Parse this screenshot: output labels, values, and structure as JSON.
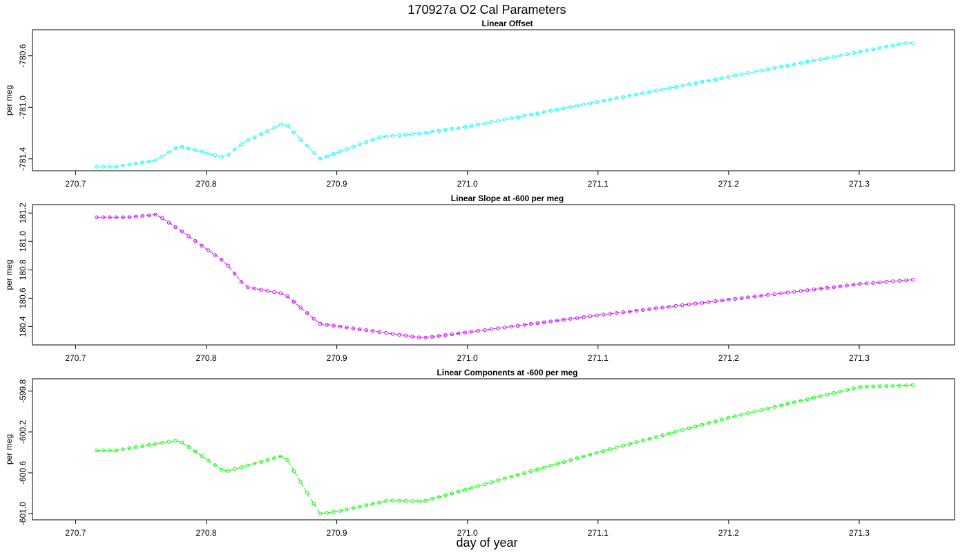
{
  "title": "170927a   O2 Cal Parameters",
  "chart_data": [
    {
      "type": "line",
      "title": "Linear Offset",
      "ylabel": "per meg",
      "color": "#00ffff",
      "xlim": [
        270.667,
        271.373
      ],
      "ylim": [
        -781.46,
        -780.43
      ],
      "xticks": [
        "270.7",
        "270.8",
        "270.9",
        "271.0",
        "271.1",
        "271.2",
        "271.3"
      ],
      "yticks": [
        "-780.6",
        "-781.0",
        "-781.4"
      ],
      "key_points": [
        [
          270.716,
          -781.46
        ],
        [
          270.731,
          -781.46
        ],
        [
          270.762,
          -781.41
        ],
        [
          270.779,
          -781.3
        ],
        [
          270.814,
          -781.39
        ],
        [
          270.829,
          -781.27
        ],
        [
          270.86,
          -781.12
        ],
        [
          270.887,
          -781.4
        ],
        [
          270.933,
          -781.23
        ],
        [
          270.966,
          -781.2
        ],
        [
          271.0,
          -781.15
        ],
        [
          271.336,
          -780.5
        ],
        [
          271.341,
          -780.5
        ]
      ],
      "n_points": 125
    },
    {
      "type": "line",
      "title": "Linear Slope at -600 per meg",
      "ylabel": "per meg",
      "color": "#cc00ff",
      "xlim": [
        270.667,
        271.373
      ],
      "ylim": [
        180.3,
        181.23
      ],
      "xticks": [
        "270.7",
        "270.8",
        "270.9",
        "271.0",
        "271.1",
        "271.2",
        "271.3"
      ],
      "yticks": [
        "180.4",
        "180.6",
        "180.8",
        "181.0",
        "181.2"
      ],
      "key_points": [
        [
          270.716,
          181.17
        ],
        [
          270.74,
          181.17
        ],
        [
          270.762,
          181.19
        ],
        [
          270.78,
          181.08
        ],
        [
          270.815,
          180.85
        ],
        [
          270.83,
          180.68
        ],
        [
          270.86,
          180.63
        ],
        [
          270.887,
          180.42
        ],
        [
          270.966,
          180.32
        ],
        [
          271.0,
          180.36
        ],
        [
          271.1,
          180.48
        ],
        [
          271.2,
          180.59
        ],
        [
          271.3,
          180.7
        ],
        [
          271.341,
          180.73
        ]
      ],
      "n_points": 125
    },
    {
      "type": "line",
      "title": "Linear Components at -600 per meg",
      "ylabel": "per meg",
      "color": "#00ff00",
      "xlim": [
        270.667,
        271.373
      ],
      "ylim": [
        -601.02,
        -599.72
      ],
      "xticks": [
        "270.7",
        "270.8",
        "270.9",
        "271.0",
        "271.1",
        "271.2",
        "271.3"
      ],
      "yticks": [
        "-599.8",
        "-600.2",
        "-600.6",
        "-601.0"
      ],
      "key_points": [
        [
          270.716,
          -600.38
        ],
        [
          270.731,
          -600.38
        ],
        [
          270.779,
          -600.28
        ],
        [
          270.814,
          -600.59
        ],
        [
          270.86,
          -600.43
        ],
        [
          270.887,
          -601.0
        ],
        [
          270.9,
          -600.98
        ],
        [
          270.94,
          -600.87
        ],
        [
          270.966,
          -600.88
        ],
        [
          271.1,
          -600.4
        ],
        [
          271.2,
          -600.06
        ],
        [
          271.3,
          -599.76
        ],
        [
          271.341,
          -599.74
        ]
      ],
      "n_points": 125
    }
  ],
  "xlabel": "day of year"
}
